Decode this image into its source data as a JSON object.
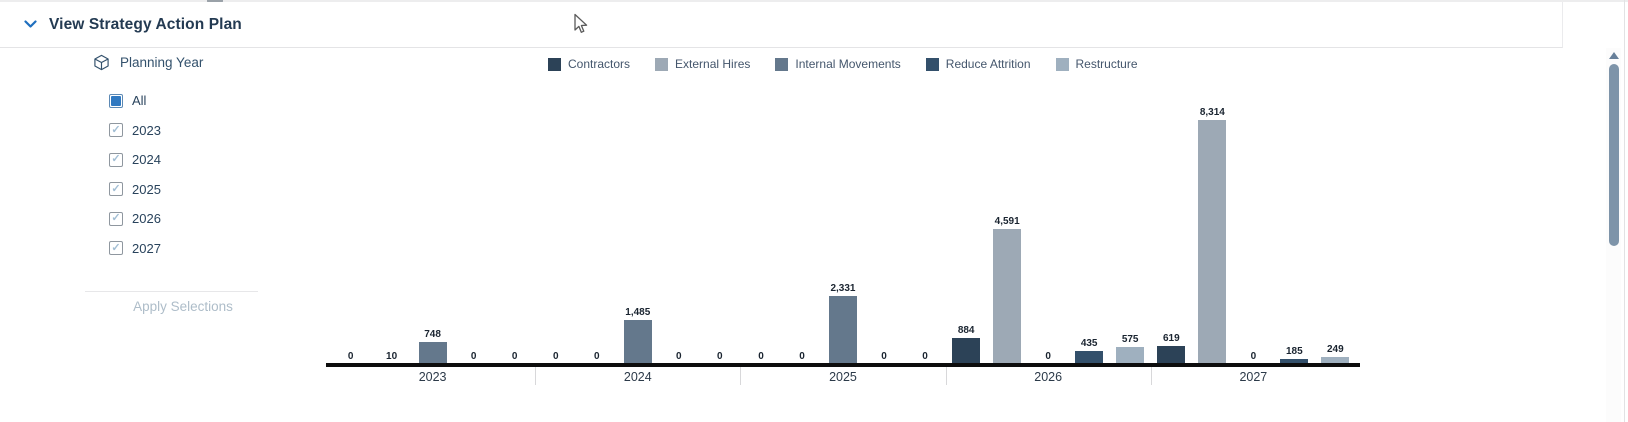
{
  "header": {
    "title": "View Strategy Action Plan"
  },
  "filter_panel": {
    "title": "Planning Year",
    "options": [
      {
        "label": "All",
        "state": "all"
      },
      {
        "label": "2023",
        "state": "checked"
      },
      {
        "label": "2024",
        "state": "checked"
      },
      {
        "label": "2025",
        "state": "checked"
      },
      {
        "label": "2026",
        "state": "checked"
      },
      {
        "label": "2027",
        "state": "checked"
      }
    ],
    "apply_button": "Apply Selections"
  },
  "colors": {
    "accent_blue": "#3079c1",
    "chevron_blue": "#1f6fbe",
    "axis_black": "#0d0d0d"
  },
  "chart_data": {
    "type": "bar",
    "title": "",
    "categories": [
      "2023",
      "2024",
      "2025",
      "2026",
      "2027"
    ],
    "series": [
      {
        "name": "Contractors",
        "color": "#2c4257",
        "values": [
          0,
          0,
          0,
          884,
          619
        ]
      },
      {
        "name": "External Hires",
        "color": "#9da9b5",
        "values": [
          10,
          0,
          0,
          4591,
          8314
        ]
      },
      {
        "name": "Internal Movements",
        "color": "#64788c",
        "values": [
          748,
          1485,
          2331,
          0,
          0
        ]
      },
      {
        "name": "Reduce Attrition",
        "color": "#33506b",
        "values": [
          0,
          0,
          0,
          435,
          185
        ]
      },
      {
        "name": "Restructure",
        "color": "#9fb0bf",
        "values": [
          0,
          0,
          0,
          575,
          249
        ]
      }
    ],
    "legend_position": "top",
    "grid": false,
    "data_labels": true,
    "ylim": [
      0,
      8314
    ],
    "xlabel": "",
    "ylabel": ""
  }
}
